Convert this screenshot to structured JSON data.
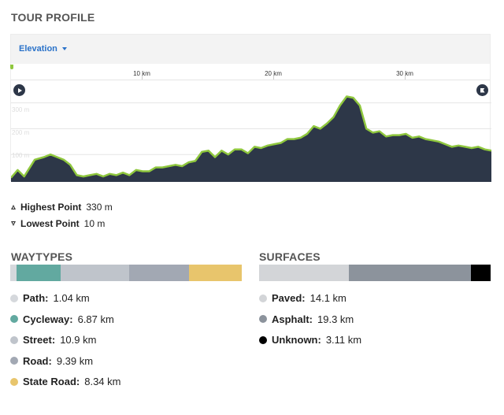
{
  "tour_profile": {
    "title": "TOUR PROFILE",
    "dropdown_label": "Elevation",
    "km_ticks": [
      "10 km",
      "20 km",
      "30 km"
    ],
    "elevation_labels": [
      "300 m",
      "200 m",
      "100 m"
    ],
    "play_icon": "play-icon",
    "finish_icon": "finish-flag-icon"
  },
  "stats": {
    "highest_label": "Highest Point",
    "highest_value": "330 m",
    "lowest_label": "Lowest Point",
    "lowest_value": "10 m"
  },
  "waytypes": {
    "title": "WAYTYPES",
    "items": [
      {
        "label": "Path:",
        "value": "1.04 km",
        "color": "#d5d8dc",
        "km": 1.04
      },
      {
        "label": "Cycleway:",
        "value": "6.87 km",
        "color": "#62a9a0",
        "km": 6.87
      },
      {
        "label": "Street:",
        "value": "10.9 km",
        "color": "#bfc4cb",
        "km": 10.9
      },
      {
        "label": "Road:",
        "value": "9.39 km",
        "color": "#a2a8b3",
        "km": 9.39
      },
      {
        "label": "State Road:",
        "value": "8.34 km",
        "color": "#e8c56c",
        "km": 8.34
      }
    ]
  },
  "surfaces": {
    "title": "SURFACES",
    "items": [
      {
        "label": "Paved:",
        "value": "14.1 km",
        "color": "#d3d5d8",
        "km": 14.1
      },
      {
        "label": "Asphalt:",
        "value": "19.3 km",
        "color": "#8c939c",
        "km": 19.3
      },
      {
        "label": "Unknown:",
        "value": "3.11 km",
        "color": "#000000",
        "km": 3.11
      }
    ]
  },
  "chart_data": {
    "type": "area",
    "x_unit": "km",
    "y_unit": "m",
    "xlim": [
      0,
      36.5
    ],
    "ylim": [
      0,
      360
    ],
    "x": [
      0,
      0.5,
      1.0,
      1.8,
      2.5,
      3.0,
      3.5,
      4.0,
      4.5,
      5.0,
      5.5,
      6.0,
      6.5,
      7.0,
      7.5,
      8.0,
      8.5,
      9.0,
      9.5,
      10.0,
      10.5,
      11.0,
      11.5,
      12.0,
      12.5,
      13.0,
      13.5,
      14.0,
      14.5,
      15.0,
      15.5,
      16.0,
      16.5,
      17.0,
      17.5,
      18.0,
      18.5,
      19.0,
      19.5,
      20.0,
      20.5,
      21.0,
      21.5,
      22.0,
      22.5,
      23.0,
      23.5,
      24.0,
      24.5,
      25.0,
      25.5,
      26.0,
      26.5,
      27.0,
      27.5,
      28.0,
      28.5,
      29.0,
      29.5,
      30.0,
      30.5,
      31.0,
      31.5,
      32.0,
      32.5,
      33.0,
      33.5,
      34.0,
      34.5,
      35.0,
      35.5,
      36.0,
      36.5
    ],
    "y": [
      10,
      40,
      15,
      80,
      90,
      100,
      90,
      80,
      60,
      20,
      15,
      20,
      25,
      15,
      25,
      20,
      30,
      20,
      40,
      35,
      35,
      50,
      50,
      55,
      60,
      55,
      70,
      75,
      110,
      115,
      90,
      115,
      100,
      120,
      120,
      105,
      130,
      125,
      135,
      140,
      145,
      160,
      160,
      165,
      180,
      210,
      200,
      220,
      245,
      290,
      325,
      320,
      290,
      200,
      185,
      190,
      170,
      175,
      175,
      180,
      165,
      170,
      160,
      155,
      150,
      140,
      130,
      135,
      130,
      125,
      130,
      120,
      115
    ]
  }
}
